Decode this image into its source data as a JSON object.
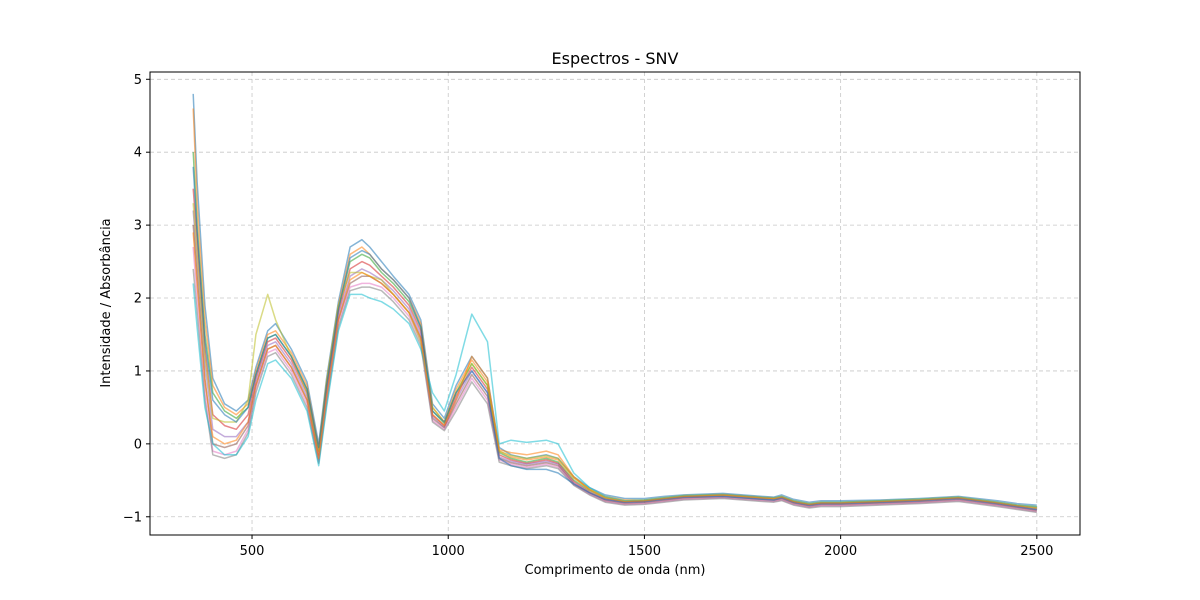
{
  "chart_data": {
    "type": "line",
    "title": "Espectros - SNV",
    "xlabel": "Comprimento de onda (nm)",
    "ylabel": "Intensidade / Absorbância",
    "xlim": [
      240,
      2610
    ],
    "ylim": [
      -1.25,
      5.1
    ],
    "xticks": [
      500,
      1000,
      1500,
      2000,
      2500
    ],
    "yticks": [
      -1,
      0,
      1,
      2,
      3,
      4,
      5
    ],
    "xtick_labels": [
      "500",
      "1000",
      "1500",
      "2000",
      "2500"
    ],
    "ytick_labels": [
      "−1",
      "0",
      "1",
      "2",
      "3",
      "4",
      "5"
    ],
    "grid": true,
    "colors": [
      "#1f77b4",
      "#ff7f0e",
      "#2ca02c",
      "#d62728",
      "#9467bd",
      "#8c564b",
      "#e377c2",
      "#7f7f7f",
      "#bcbd22",
      "#17becf"
    ],
    "x": [
      350,
      360,
      380,
      400,
      430,
      460,
      490,
      510,
      540,
      560,
      600,
      640,
      670,
      690,
      720,
      750,
      780,
      800,
      830,
      860,
      900,
      930,
      960,
      990,
      1020,
      1060,
      1100,
      1130,
      1160,
      1200,
      1250,
      1280,
      1320,
      1360,
      1400,
      1450,
      1500,
      1550,
      1600,
      1700,
      1800,
      1830,
      1850,
      1880,
      1920,
      1950,
      2000,
      2100,
      2200,
      2300,
      2400,
      2450,
      2500
    ],
    "series": [
      {
        "values": [
          4.8,
          3.6,
          1.9,
          0.9,
          0.55,
          0.45,
          0.6,
          1.05,
          1.55,
          1.65,
          1.3,
          0.85,
          0.0,
          0.9,
          1.95,
          2.7,
          2.8,
          2.7,
          2.5,
          2.3,
          2.05,
          1.7,
          0.55,
          0.35,
          0.8,
          1.2,
          0.9,
          -0.05,
          -0.15,
          -0.2,
          -0.15,
          -0.2,
          -0.45,
          -0.6,
          -0.7,
          -0.75,
          -0.75,
          -0.72,
          -0.7,
          -0.68,
          -0.72,
          -0.73,
          -0.7,
          -0.76,
          -0.8,
          -0.78,
          -0.78,
          -0.77,
          -0.75,
          -0.72,
          -0.78,
          -0.82,
          -0.84
        ]
      },
      {
        "values": [
          4.6,
          3.3,
          1.7,
          0.8,
          0.5,
          0.4,
          0.55,
          1.0,
          1.5,
          1.55,
          1.25,
          0.8,
          -0.05,
          0.85,
          1.9,
          2.6,
          2.7,
          2.6,
          2.4,
          2.25,
          2.0,
          1.65,
          0.5,
          0.3,
          0.75,
          1.15,
          0.85,
          -0.1,
          -0.18,
          -0.22,
          -0.18,
          -0.22,
          -0.47,
          -0.62,
          -0.72,
          -0.77,
          -0.77,
          -0.74,
          -0.71,
          -0.69,
          -0.73,
          -0.74,
          -0.72,
          -0.78,
          -0.82,
          -0.8,
          -0.8,
          -0.78,
          -0.76,
          -0.73,
          -0.8,
          -0.84,
          -0.86
        ]
      },
      {
        "values": [
          4.0,
          3.0,
          1.5,
          0.7,
          0.45,
          0.35,
          0.5,
          0.95,
          1.45,
          1.5,
          1.2,
          0.75,
          -0.1,
          0.8,
          1.85,
          2.5,
          2.6,
          2.55,
          2.35,
          2.2,
          1.95,
          1.6,
          0.45,
          0.28,
          0.7,
          1.1,
          0.8,
          -0.12,
          -0.2,
          -0.25,
          -0.2,
          -0.25,
          -0.5,
          -0.64,
          -0.74,
          -0.79,
          -0.78,
          -0.75,
          -0.72,
          -0.7,
          -0.74,
          -0.75,
          -0.73,
          -0.79,
          -0.83,
          -0.81,
          -0.81,
          -0.79,
          -0.77,
          -0.74,
          -0.81,
          -0.85,
          -0.88
        ]
      },
      {
        "values": [
          3.5,
          2.8,
          1.3,
          0.4,
          0.25,
          0.2,
          0.4,
          0.9,
          1.4,
          1.45,
          1.15,
          0.7,
          -0.15,
          0.75,
          1.8,
          2.4,
          2.5,
          2.45,
          2.3,
          2.15,
          1.9,
          1.55,
          0.4,
          0.25,
          0.65,
          1.05,
          0.75,
          -0.15,
          -0.22,
          -0.27,
          -0.22,
          -0.27,
          -0.52,
          -0.66,
          -0.76,
          -0.8,
          -0.79,
          -0.76,
          -0.73,
          -0.71,
          -0.75,
          -0.76,
          -0.74,
          -0.8,
          -0.84,
          -0.82,
          -0.82,
          -0.8,
          -0.78,
          -0.75,
          -0.82,
          -0.86,
          -0.9
        ]
      },
      {
        "values": [
          3.2,
          2.5,
          1.1,
          0.2,
          0.1,
          0.1,
          0.3,
          0.85,
          1.35,
          1.4,
          1.1,
          0.65,
          -0.2,
          0.7,
          1.75,
          2.3,
          2.4,
          2.35,
          2.25,
          2.1,
          1.85,
          1.5,
          0.38,
          0.23,
          0.6,
          1.0,
          0.7,
          -0.18,
          -0.24,
          -0.28,
          -0.24,
          -0.28,
          -0.54,
          -0.67,
          -0.77,
          -0.81,
          -0.8,
          -0.77,
          -0.74,
          -0.72,
          -0.76,
          -0.77,
          -0.75,
          -0.81,
          -0.85,
          -0.83,
          -0.83,
          -0.81,
          -0.79,
          -0.76,
          -0.83,
          -0.87,
          -0.91
        ]
      },
      {
        "values": [
          3.0,
          2.3,
          0.9,
          0.0,
          -0.05,
          0.0,
          0.25,
          0.8,
          1.3,
          1.35,
          1.05,
          0.6,
          -0.22,
          0.65,
          1.7,
          2.2,
          2.3,
          2.3,
          2.2,
          2.05,
          1.8,
          1.45,
          0.35,
          0.22,
          0.55,
          0.95,
          0.65,
          -0.2,
          -0.26,
          -0.3,
          -0.26,
          -0.3,
          -0.55,
          -0.68,
          -0.78,
          -0.82,
          -0.81,
          -0.78,
          -0.75,
          -0.73,
          -0.77,
          -0.78,
          -0.76,
          -0.82,
          -0.86,
          -0.84,
          -0.84,
          -0.82,
          -0.8,
          -0.77,
          -0.84,
          -0.88,
          -0.92
        ]
      },
      {
        "values": [
          2.7,
          2.0,
          0.7,
          -0.1,
          -0.15,
          -0.1,
          0.2,
          0.75,
          1.25,
          1.3,
          1.0,
          0.55,
          -0.25,
          0.6,
          1.65,
          2.15,
          2.2,
          2.2,
          2.15,
          2.0,
          1.75,
          1.4,
          0.32,
          0.2,
          0.5,
          0.9,
          0.6,
          -0.22,
          -0.28,
          -0.32,
          -0.28,
          -0.32,
          -0.56,
          -0.69,
          -0.79,
          -0.83,
          -0.82,
          -0.79,
          -0.76,
          -0.74,
          -0.78,
          -0.79,
          -0.77,
          -0.83,
          -0.87,
          -0.85,
          -0.85,
          -0.83,
          -0.81,
          -0.78,
          -0.85,
          -0.89,
          -0.93
        ]
      },
      {
        "values": [
          2.4,
          1.8,
          0.6,
          -0.15,
          -0.2,
          -0.15,
          0.15,
          0.7,
          1.2,
          1.25,
          0.95,
          0.5,
          -0.27,
          0.55,
          1.6,
          2.1,
          2.15,
          2.15,
          2.1,
          1.95,
          1.7,
          1.35,
          0.3,
          0.18,
          0.45,
          0.85,
          0.55,
          -0.25,
          -0.3,
          -0.34,
          -0.3,
          -0.34,
          -0.57,
          -0.7,
          -0.8,
          -0.84,
          -0.83,
          -0.8,
          -0.77,
          -0.75,
          -0.79,
          -0.8,
          -0.78,
          -0.84,
          -0.88,
          -0.86,
          -0.86,
          -0.84,
          -0.82,
          -0.79,
          -0.86,
          -0.9,
          -0.94
        ]
      },
      {
        "values": [
          3.3,
          2.6,
          1.2,
          0.35,
          0.3,
          0.3,
          0.6,
          1.5,
          2.05,
          1.7,
          1.2,
          0.7,
          -0.1,
          0.85,
          1.9,
          2.35,
          2.35,
          2.3,
          2.25,
          2.05,
          1.8,
          1.4,
          0.5,
          0.3,
          0.7,
          1.1,
          0.8,
          -0.1,
          -0.16,
          -0.2,
          -0.16,
          -0.2,
          -0.46,
          -0.62,
          -0.73,
          -0.78,
          -0.77,
          -0.74,
          -0.71,
          -0.7,
          -0.74,
          -0.75,
          -0.72,
          -0.78,
          -0.82,
          -0.8,
          -0.8,
          -0.78,
          -0.76,
          -0.73,
          -0.8,
          -0.84,
          -0.86
        ]
      },
      {
        "values": [
          2.2,
          1.6,
          0.5,
          0.0,
          -0.15,
          -0.15,
          0.1,
          0.6,
          1.1,
          1.15,
          0.9,
          0.45,
          -0.3,
          0.5,
          1.55,
          2.05,
          2.05,
          2.0,
          1.95,
          1.85,
          1.65,
          1.3,
          0.7,
          0.45,
          0.95,
          1.78,
          1.4,
          0.0,
          0.05,
          0.02,
          0.05,
          0.0,
          -0.4,
          -0.6,
          -0.72,
          -0.78,
          -0.77,
          -0.74,
          -0.71,
          -0.69,
          -0.73,
          -0.74,
          -0.72,
          -0.78,
          -0.82,
          -0.8,
          -0.8,
          -0.78,
          -0.76,
          -0.73,
          -0.8,
          -0.84,
          -0.86
        ]
      },
      {
        "values": [
          3.8,
          2.9,
          1.4,
          0.6,
          0.4,
          0.3,
          0.5,
          0.95,
          1.45,
          1.5,
          1.2,
          0.75,
          -0.05,
          0.8,
          1.85,
          2.55,
          2.65,
          2.6,
          2.4,
          2.25,
          2.0,
          1.6,
          0.45,
          0.3,
          0.7,
          1.0,
          0.7,
          -0.2,
          -0.3,
          -0.35,
          -0.35,
          -0.4,
          -0.55,
          -0.67,
          -0.76,
          -0.8,
          -0.79,
          -0.76,
          -0.73,
          -0.72,
          -0.76,
          -0.77,
          -0.74,
          -0.8,
          -0.84,
          -0.82,
          -0.82,
          -0.8,
          -0.78,
          -0.75,
          -0.82,
          -0.86,
          -0.9
        ]
      },
      {
        "values": [
          2.9,
          2.2,
          0.85,
          0.1,
          0.0,
          0.05,
          0.3,
          0.8,
          1.3,
          1.35,
          1.05,
          0.6,
          -0.2,
          0.65,
          1.7,
          2.25,
          2.35,
          2.3,
          2.2,
          2.05,
          1.8,
          1.45,
          0.4,
          0.25,
          0.6,
          1.2,
          0.9,
          -0.08,
          -0.12,
          -0.15,
          -0.1,
          -0.15,
          -0.45,
          -0.63,
          -0.74,
          -0.79,
          -0.78,
          -0.75,
          -0.72,
          -0.7,
          -0.74,
          -0.75,
          -0.73,
          -0.79,
          -0.83,
          -0.81,
          -0.81,
          -0.79,
          -0.77,
          -0.74,
          -0.81,
          -0.85,
          -0.88
        ]
      }
    ]
  }
}
